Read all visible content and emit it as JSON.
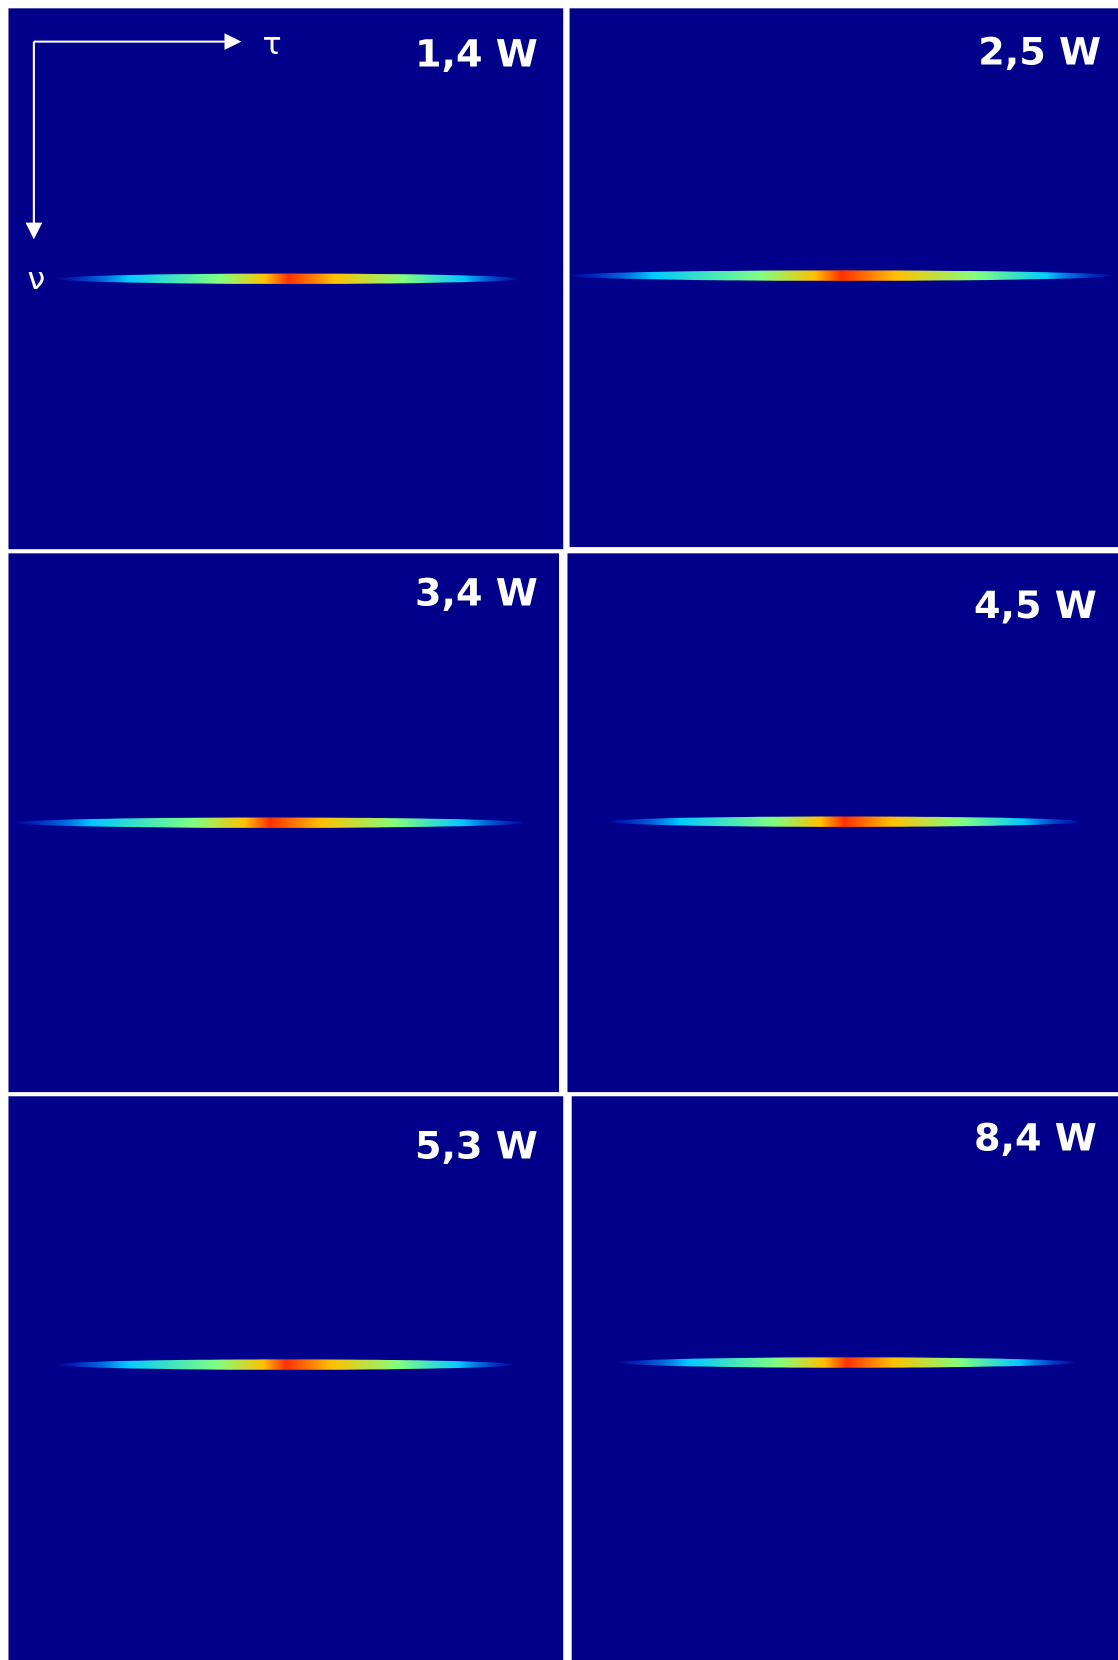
{
  "axes": {
    "horizontal": "τ",
    "vertical": "ν"
  },
  "panels": [
    {
      "label": "1,4 W"
    },
    {
      "label": "2,5 W"
    },
    {
      "label": "3,4 W"
    },
    {
      "label": "4,5 W"
    },
    {
      "label": "5,3 W"
    },
    {
      "label": "8,4 W"
    }
  ]
}
